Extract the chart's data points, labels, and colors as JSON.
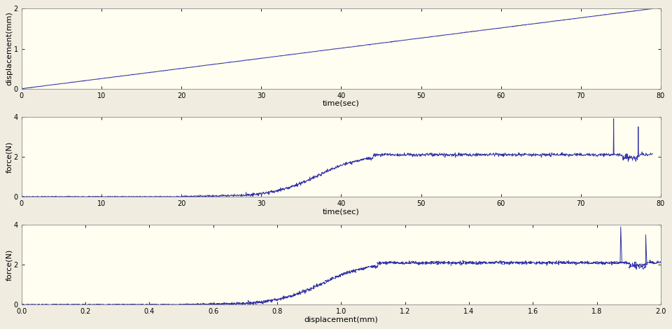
{
  "fig_width": 9.6,
  "fig_height": 4.7,
  "dpi": 100,
  "fig_background": "#f0ece0",
  "axes_background": "#fffef0",
  "line_color": "#3333aa",
  "line_width": 0.7,
  "plot1": {
    "xlabel": "time(sec)",
    "ylabel": "displacement(mm)",
    "xlim": [
      0,
      80
    ],
    "ylim": [
      0,
      2
    ],
    "yticks": [
      0,
      1,
      2
    ],
    "xticks": [
      0,
      10,
      20,
      30,
      40,
      50,
      60,
      70,
      80
    ]
  },
  "plot2": {
    "xlabel": "time(sec)",
    "ylabel": "force(N)",
    "xlim": [
      0,
      80
    ],
    "ylim": [
      0,
      4
    ],
    "yticks": [
      0,
      2,
      4
    ],
    "xticks": [
      0,
      10,
      20,
      30,
      40,
      50,
      60,
      70,
      80
    ]
  },
  "plot3": {
    "xlabel": "displacement(mm)",
    "ylabel": "force(N)",
    "xlim": [
      0,
      2
    ],
    "ylim": [
      0,
      4
    ],
    "yticks": [
      0,
      2,
      4
    ],
    "xticks": [
      0.0,
      0.2,
      0.4,
      0.6,
      0.8,
      1.0,
      1.2,
      1.4,
      1.6,
      1.8,
      2.0
    ]
  }
}
